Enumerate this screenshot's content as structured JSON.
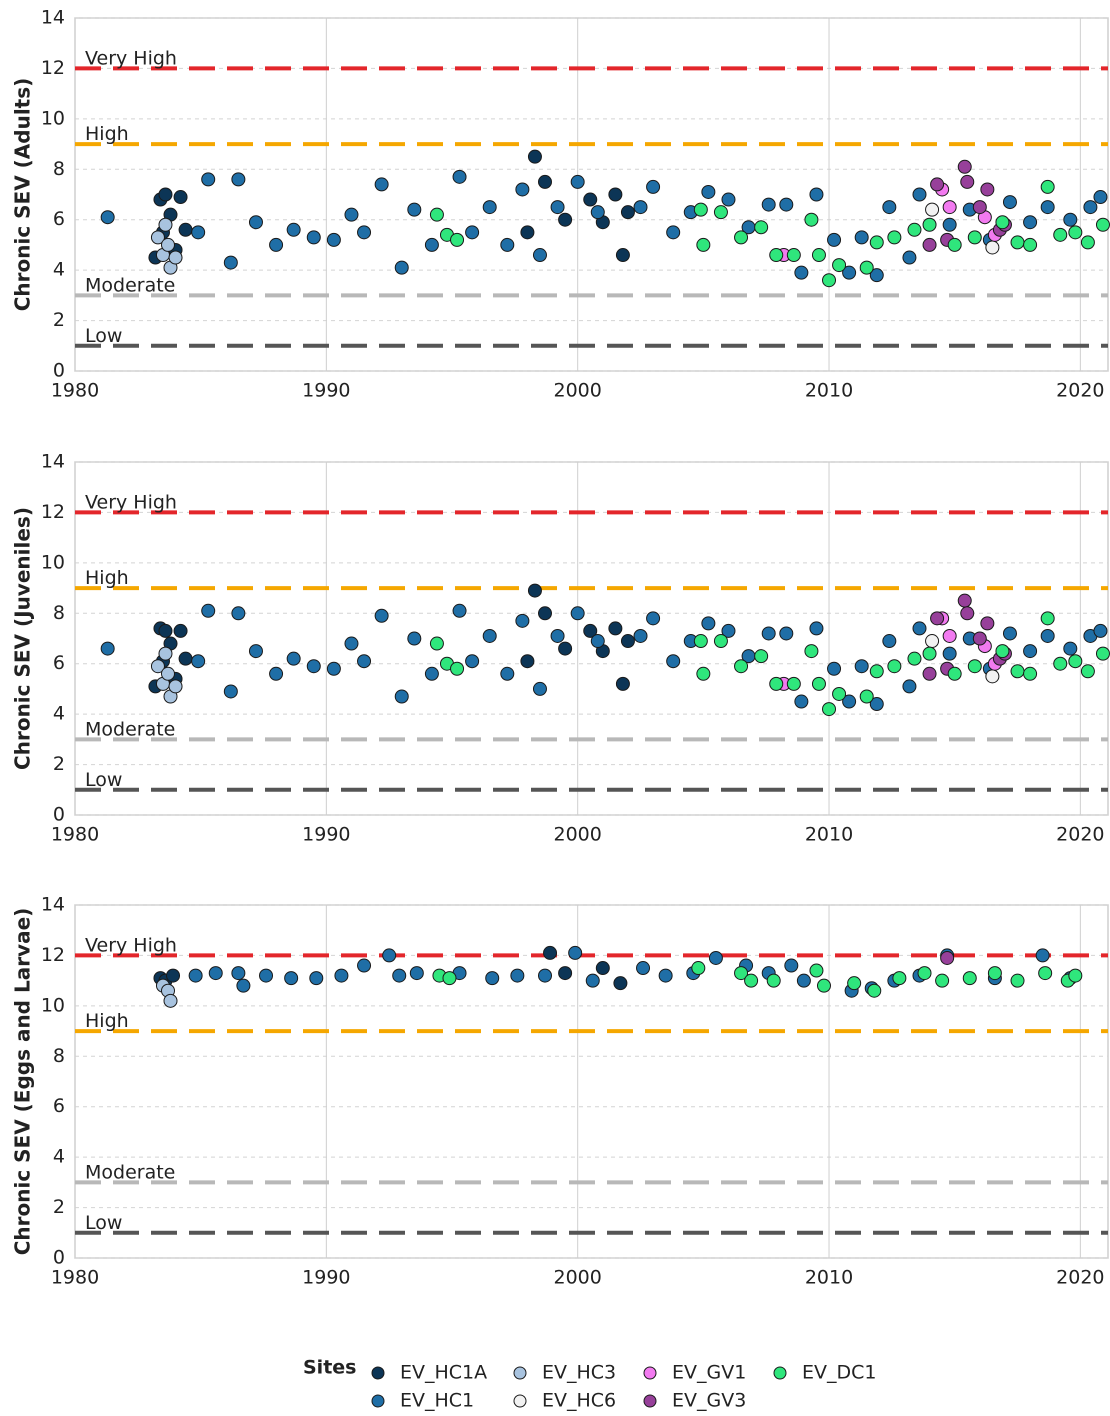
{
  "chart_data": [
    {
      "type": "scatter",
      "ylabel": "Chronic SEV (Adults)",
      "xlim": [
        1980,
        2021.1
      ],
      "ylim": [
        0,
        14
      ],
      "xticks": [
        1980,
        1990,
        2000,
        2010,
        2020
      ],
      "yticks": [
        0,
        2,
        4,
        6,
        8,
        10,
        12,
        14
      ],
      "grid": true,
      "thresholds": [
        {
          "label": "Very High",
          "value": 12,
          "color": "#e3262b"
        },
        {
          "label": "High",
          "value": 9,
          "color": "#f5a700"
        },
        {
          "label": "Moderate",
          "value": 3,
          "color": "#b8b8b8"
        },
        {
          "label": "Low",
          "value": 1,
          "color": "#555555"
        }
      ],
      "series": [
        {
          "name": "EV_HC1A",
          "color": "#0c3556",
          "x": [
            1983.2,
            1983.4,
            1983.5,
            1983.6,
            1983.8,
            1984.0,
            1984.2,
            1984.4,
            1998.0,
            1998.3,
            1998.7,
            1999.5,
            2000.5,
            2001.0,
            2001.5,
            2001.8,
            2002.0
          ],
          "values": [
            4.5,
            6.8,
            5.5,
            7.0,
            6.2,
            4.8,
            6.9,
            5.6,
            5.5,
            8.5,
            7.5,
            6.0,
            6.8,
            5.9,
            7.0,
            4.6,
            6.3
          ]
        },
        {
          "name": "EV_HC1",
          "color": "#1f6ea6",
          "x": [
            1981.3,
            1984.9,
            1985.3,
            1986.2,
            1986.5,
            1987.2,
            1988.0,
            1988.7,
            1989.5,
            1990.3,
            1991.0,
            1991.5,
            1992.2,
            1993.0,
            1993.5,
            1994.2,
            1995.3,
            1995.8,
            1996.5,
            1997.2,
            1997.8,
            1998.5,
            1999.2,
            2000.0,
            2000.8,
            2002.5,
            2003.0,
            2003.8,
            2004.5,
            2005.2,
            2006.0,
            2006.8,
            2007.6,
            2008.3,
            2008.9,
            2009.5,
            2010.2,
            2010.8,
            2011.3,
            2011.9,
            2012.4,
            2013.2,
            2013.6,
            2014.8,
            2015.6,
            2016.4,
            2017.2,
            2018.0,
            2018.7,
            2019.6,
            2020.4,
            2020.8
          ],
          "values": [
            6.1,
            5.5,
            7.6,
            4.3,
            7.6,
            5.9,
            5.0,
            5.6,
            5.3,
            5.2,
            6.2,
            5.5,
            7.4,
            4.1,
            6.4,
            5.0,
            7.7,
            5.5,
            6.5,
            5.0,
            7.2,
            4.6,
            6.5,
            7.5,
            6.3,
            6.5,
            7.3,
            5.5,
            6.3,
            7.1,
            6.8,
            5.7,
            6.6,
            6.6,
            3.9,
            7.0,
            5.2,
            3.9,
            5.3,
            3.8,
            6.5,
            4.5,
            7.0,
            5.8,
            6.4,
            5.2,
            6.7,
            5.9,
            6.5,
            6.0,
            6.5,
            6.9
          ]
        },
        {
          "name": "EV_HC3",
          "color": "#a8c3df",
          "x": [
            1983.3,
            1983.5,
            1983.6,
            1983.8,
            1984.0,
            1983.7
          ],
          "values": [
            5.3,
            4.6,
            5.8,
            4.1,
            4.5,
            5.0
          ]
        },
        {
          "name": "EV_HC6",
          "color": "#f2f2f2",
          "x": [
            2014.1,
            2016.5
          ],
          "values": [
            6.4,
            4.9
          ]
        },
        {
          "name": "EV_GV1",
          "color": "#f27af0",
          "x": [
            2008.2,
            2014.5,
            2014.8,
            2016.2,
            2016.6
          ],
          "values": [
            4.6,
            7.2,
            6.5,
            6.1,
            5.4
          ]
        },
        {
          "name": "EV_GV3",
          "color": "#97409a",
          "x": [
            2014.3,
            2014.7,
            2015.4,
            2015.5,
            2016.0,
            2016.3,
            2016.8,
            2014.0,
            2017.0
          ],
          "values": [
            7.4,
            5.2,
            8.1,
            7.5,
            6.5,
            7.2,
            5.6,
            5.0,
            5.8
          ]
        },
        {
          "name": "EV_DC1",
          "color": "#2fe67c",
          "x": [
            1994.4,
            1994.8,
            1995.2,
            2004.9,
            2005.0,
            2005.7,
            2006.5,
            2007.3,
            2007.9,
            2008.6,
            2009.3,
            2009.6,
            2010.0,
            2010.4,
            2011.5,
            2011.9,
            2012.6,
            2013.4,
            2014.0,
            2015.0,
            2015.8,
            2016.9,
            2017.5,
            2018.0,
            2018.7,
            2019.2,
            2019.8,
            2020.3,
            2020.9
          ],
          "values": [
            6.2,
            5.4,
            5.2,
            6.4,
            5.0,
            6.3,
            5.3,
            5.7,
            4.6,
            4.6,
            6.0,
            4.6,
            3.6,
            4.2,
            4.1,
            5.1,
            5.3,
            5.6,
            5.8,
            5.0,
            5.3,
            5.9,
            5.1,
            5.0,
            7.3,
            5.4,
            5.5,
            5.1,
            5.8
          ]
        }
      ]
    },
    {
      "type": "scatter",
      "ylabel": "Chronic SEV (Juveniles)",
      "xlim": [
        1980,
        2021.1
      ],
      "ylim": [
        0,
        14
      ],
      "xticks": [
        1980,
        1990,
        2000,
        2010,
        2020
      ],
      "yticks": [
        0,
        2,
        4,
        6,
        8,
        10,
        12,
        14
      ],
      "grid": true,
      "thresholds": [
        {
          "label": "Very High",
          "value": 12,
          "color": "#e3262b"
        },
        {
          "label": "High",
          "value": 9,
          "color": "#f5a700"
        },
        {
          "label": "Moderate",
          "value": 3,
          "color": "#b8b8b8"
        },
        {
          "label": "Low",
          "value": 1,
          "color": "#555555"
        }
      ],
      "series": [
        {
          "color": "#0c3556",
          "x": [
            1983.2,
            1983.4,
            1983.5,
            1983.6,
            1983.8,
            1984.0,
            1984.2,
            1984.4,
            1998.0,
            1998.3,
            1998.7,
            1999.5,
            2000.5,
            2001.0,
            2001.5,
            2001.8,
            2002.0
          ],
          "values": [
            5.1,
            7.4,
            6.1,
            7.3,
            6.8,
            5.4,
            7.3,
            6.2,
            6.1,
            8.9,
            8.0,
            6.6,
            7.3,
            6.5,
            7.4,
            5.2,
            6.9
          ]
        },
        {
          "color": "#1f6ea6",
          "x": [
            1981.3,
            1984.9,
            1985.3,
            1986.2,
            1986.5,
            1987.2,
            1988.0,
            1988.7,
            1989.5,
            1990.3,
            1991.0,
            1991.5,
            1992.2,
            1993.0,
            1993.5,
            1994.2,
            1995.3,
            1995.8,
            1996.5,
            1997.2,
            1997.8,
            1998.5,
            1999.2,
            2000.0,
            2000.8,
            2002.5,
            2003.0,
            2003.8,
            2004.5,
            2005.2,
            2006.0,
            2006.8,
            2007.6,
            2008.3,
            2008.9,
            2009.5,
            2010.2,
            2010.8,
            2011.3,
            2011.9,
            2012.4,
            2013.2,
            2013.6,
            2014.8,
            2015.6,
            2016.4,
            2017.2,
            2018.0,
            2018.7,
            2019.6,
            2020.4,
            2020.8
          ],
          "values": [
            6.6,
            6.1,
            8.1,
            4.9,
            8.0,
            6.5,
            5.6,
            6.2,
            5.9,
            5.8,
            6.8,
            6.1,
            7.9,
            4.7,
            7.0,
            5.6,
            8.1,
            6.1,
            7.1,
            5.6,
            7.7,
            5.0,
            7.1,
            8.0,
            6.9,
            7.1,
            7.8,
            6.1,
            6.9,
            7.6,
            7.3,
            6.3,
            7.2,
            7.2,
            4.5,
            7.4,
            5.8,
            4.5,
            5.9,
            4.4,
            6.9,
            5.1,
            7.4,
            6.4,
            7.0,
            5.8,
            7.2,
            6.5,
            7.1,
            6.6,
            7.1,
            7.3
          ]
        },
        {
          "color": "#a8c3df",
          "x": [
            1983.3,
            1983.5,
            1983.6,
            1983.8,
            1984.0,
            1983.7
          ],
          "values": [
            5.9,
            5.2,
            6.4,
            4.7,
            5.1,
            5.6
          ]
        },
        {
          "color": "#f2f2f2",
          "x": [
            2014.1,
            2016.5
          ],
          "values": [
            6.9,
            5.5
          ]
        },
        {
          "color": "#f27af0",
          "x": [
            2008.2,
            2014.5,
            2014.8,
            2016.2,
            2016.6
          ],
          "values": [
            5.2,
            7.8,
            7.1,
            6.7,
            6.0
          ]
        },
        {
          "color": "#97409a",
          "x": [
            2014.3,
            2014.7,
            2015.4,
            2015.5,
            2016.0,
            2016.3,
            2016.8,
            2014.0,
            2017.0
          ],
          "values": [
            7.8,
            5.8,
            8.5,
            8.0,
            7.0,
            7.6,
            6.2,
            5.6,
            6.4
          ]
        },
        {
          "color": "#2fe67c",
          "x": [
            1994.4,
            1994.8,
            1995.2,
            2004.9,
            2005.0,
            2005.7,
            2006.5,
            2007.3,
            2007.9,
            2008.6,
            2009.3,
            2009.6,
            2010.0,
            2010.4,
            2011.5,
            2011.9,
            2012.6,
            2013.4,
            2014.0,
            2015.0,
            2015.8,
            2016.9,
            2017.5,
            2018.0,
            2018.7,
            2019.2,
            2019.8,
            2020.3,
            2020.9
          ],
          "values": [
            6.8,
            6.0,
            5.8,
            6.9,
            5.6,
            6.9,
            5.9,
            6.3,
            5.2,
            5.2,
            6.5,
            5.2,
            4.2,
            4.8,
            4.7,
            5.7,
            5.9,
            6.2,
            6.4,
            5.6,
            5.9,
            6.5,
            5.7,
            5.6,
            7.8,
            6.0,
            6.1,
            5.7,
            6.4
          ]
        }
      ]
    },
    {
      "type": "scatter",
      "ylabel": "Chronic SEV (Eggs and Larvae)",
      "xlim": [
        1980,
        2021.1
      ],
      "ylim": [
        0,
        14
      ],
      "xticks": [
        1980,
        1990,
        2000,
        2010,
        2020
      ],
      "yticks": [
        0,
        2,
        4,
        6,
        8,
        10,
        12,
        14
      ],
      "grid": true,
      "thresholds": [
        {
          "label": "Very High",
          "value": 12,
          "color": "#e3262b"
        },
        {
          "label": "High",
          "value": 9,
          "color": "#f5a700"
        },
        {
          "label": "Moderate",
          "value": 3,
          "color": "#b8b8b8"
        },
        {
          "label": "Low",
          "value": 1,
          "color": "#555555"
        }
      ],
      "series": [
        {
          "color": "#0c3556",
          "x": [
            1983.4,
            1983.6,
            1983.9,
            1998.9,
            1999.5,
            2001.0,
            2001.7
          ],
          "values": [
            11.1,
            11.0,
            11.2,
            12.1,
            11.3,
            11.5,
            10.9
          ]
        },
        {
          "color": "#1f6ea6",
          "x": [
            1984.8,
            1985.6,
            1986.5,
            1986.7,
            1987.6,
            1988.6,
            1989.6,
            1990.6,
            1991.5,
            1992.5,
            1992.9,
            1993.6,
            1995.3,
            1996.6,
            1997.6,
            1998.7,
            1999.9,
            2000.6,
            2002.6,
            2003.5,
            2004.6,
            2005.5,
            2006.7,
            2007.6,
            2008.5,
            2009.0,
            2010.9,
            2011.7,
            2012.6,
            2013.6,
            2014.7,
            2016.6,
            2018.5,
            2019.6
          ],
          "values": [
            11.2,
            11.3,
            11.3,
            10.8,
            11.2,
            11.1,
            11.1,
            11.2,
            11.6,
            12.0,
            11.2,
            11.3,
            11.3,
            11.1,
            11.2,
            11.2,
            12.1,
            11.0,
            11.5,
            11.2,
            11.3,
            11.9,
            11.6,
            11.3,
            11.6,
            11.0,
            10.6,
            10.7,
            11.0,
            11.2,
            12.0,
            11.1,
            12.0,
            11.1
          ]
        },
        {
          "color": "#a8c3df",
          "x": [
            1983.5,
            1983.7,
            1983.8
          ],
          "values": [
            10.8,
            10.6,
            10.2
          ]
        },
        {
          "color": "#97409a",
          "x": [
            2014.7
          ],
          "values": [
            11.9
          ]
        },
        {
          "color": "#2fe67c",
          "x": [
            1994.5,
            1994.9,
            2004.8,
            2006.5,
            2006.9,
            2007.8,
            2009.5,
            2009.8,
            2011.0,
            2011.8,
            2012.8,
            2013.8,
            2014.5,
            2015.6,
            2016.6,
            2017.5,
            2018.6,
            2019.5,
            2019.8
          ],
          "values": [
            11.2,
            11.1,
            11.5,
            11.3,
            11.0,
            11.0,
            11.4,
            10.8,
            10.9,
            10.6,
            11.1,
            11.3,
            11.0,
            11.1,
            11.3,
            11.0,
            11.3,
            11.0,
            11.2
          ]
        }
      ]
    }
  ],
  "legend": {
    "title": "Sites"
  }
}
